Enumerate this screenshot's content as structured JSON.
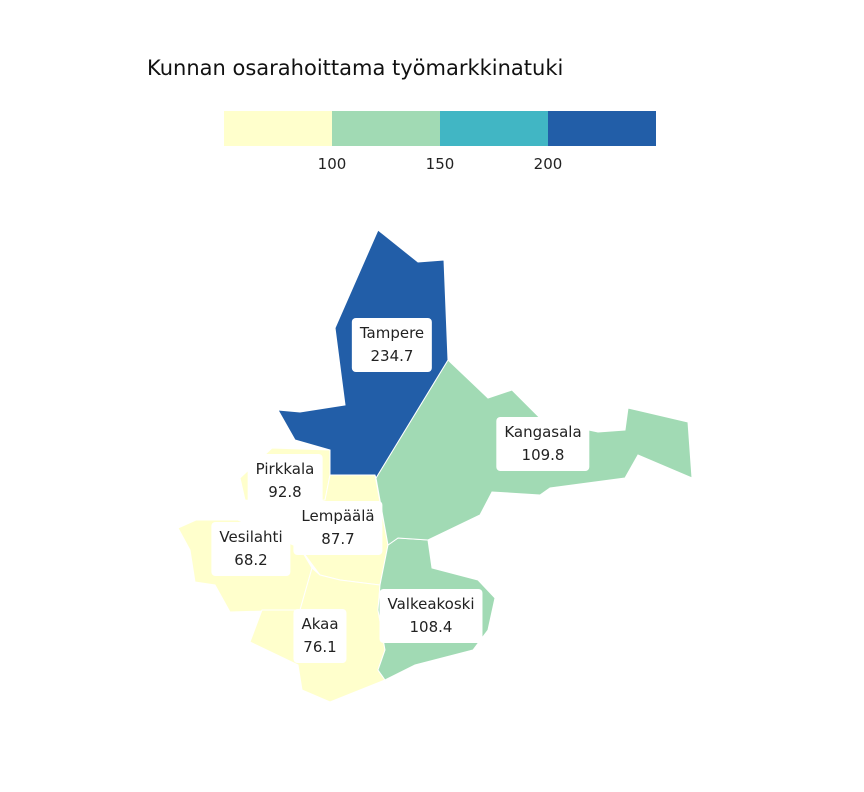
{
  "title": "Kunnan osarahoittama työmarkkinatuki",
  "legend": {
    "colors": [
      "#ffffcc",
      "#a1dab4",
      "#41b6c4",
      "#225ea8"
    ],
    "ticks": [
      "100",
      "150",
      "200"
    ]
  },
  "regions": [
    {
      "name": "Tampere",
      "value": "234.7",
      "color": "#225ea8"
    },
    {
      "name": "Kangasala",
      "value": "109.8",
      "color": "#a1dab4"
    },
    {
      "name": "Pirkkala",
      "value": "92.8",
      "color": "#ffffcc"
    },
    {
      "name": "Lempäälä",
      "value": "87.7",
      "color": "#ffffcc"
    },
    {
      "name": "Vesilahti",
      "value": "68.2",
      "color": "#ffffcc"
    },
    {
      "name": "Valkeakoski",
      "value": "108.4",
      "color": "#a1dab4"
    },
    {
      "name": "Akaa",
      "value": "76.1",
      "color": "#ffffcc"
    }
  ]
}
